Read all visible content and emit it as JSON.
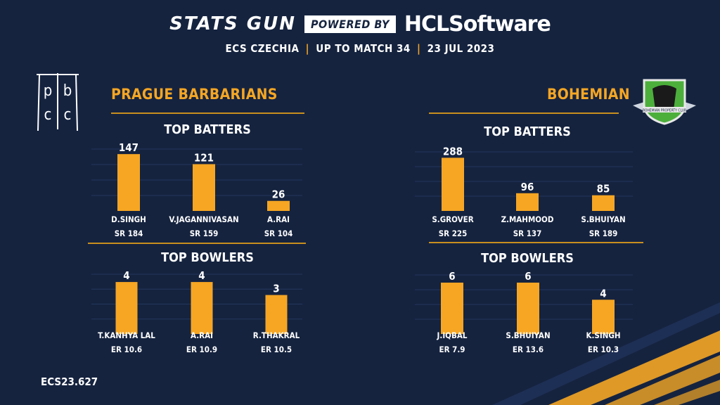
{
  "header": {
    "brand": "STATS GUN",
    "powered_by": "POWERED BY",
    "sponsor": "HCLSoftware",
    "subtitle_parts": [
      "ECS CZECHIA",
      "UP TO MATCH 34",
      "23 JUL 2023"
    ],
    "separator": "|"
  },
  "footer": {
    "code": "ECS23.627"
  },
  "colors": {
    "background": "#15233f",
    "accent": "#f5a623",
    "bar": "#f6a623",
    "text": "#ffffff"
  },
  "teams": [
    {
      "name": "PRAGUE BARBARIANS",
      "logo_text": "pbcc",
      "batters_title": "TOP BATTERS",
      "bowlers_title": "TOP BOWLERS"
    },
    {
      "name": "BOHEMIAN",
      "logo_text": "BOHEMIAN PROPERTY CLUB",
      "batters_title": "TOP BATTERS",
      "bowlers_title": "TOP BOWLERS"
    }
  ],
  "chart_data": [
    {
      "type": "bar",
      "team": "PRAGUE BARBARIANS",
      "title": "TOP BATTERS",
      "categories": [
        "D.SINGH",
        "V.JAGANNIVASAN",
        "A.RAI"
      ],
      "values": [
        147,
        121,
        26
      ],
      "sublabels": [
        "SR 184",
        "SR 159",
        "SR 104"
      ],
      "ylim": [
        0,
        160
      ]
    },
    {
      "type": "bar",
      "team": "PRAGUE BARBARIANS",
      "title": "TOP BOWLERS",
      "categories": [
        "T.KANHYA LAL",
        "A.RAI",
        "R.THAKRAL"
      ],
      "values": [
        4,
        4,
        3
      ],
      "sublabels": [
        "ER 10.6",
        "ER 10.9",
        "ER 10.5"
      ],
      "ylim": [
        0,
        4.6
      ]
    },
    {
      "type": "bar",
      "team": "BOHEMIAN",
      "title": "TOP BATTERS",
      "categories": [
        "S.GROVER",
        "Z.MAHMOOD",
        "S.BHUIYAN"
      ],
      "values": [
        288,
        96,
        85
      ],
      "sublabels": [
        "SR 225",
        "SR 137",
        "SR 189"
      ],
      "ylim": [
        0,
        320
      ]
    },
    {
      "type": "bar",
      "team": "BOHEMIAN",
      "title": "TOP BOWLERS",
      "categories": [
        "J.IQBAL",
        "S.BHUIYAN",
        "K.SINGH"
      ],
      "values": [
        6,
        6,
        4
      ],
      "sublabels": [
        "ER 7.9",
        "ER 13.6",
        "ER 10.3"
      ],
      "ylim": [
        0,
        6.9
      ]
    }
  ]
}
